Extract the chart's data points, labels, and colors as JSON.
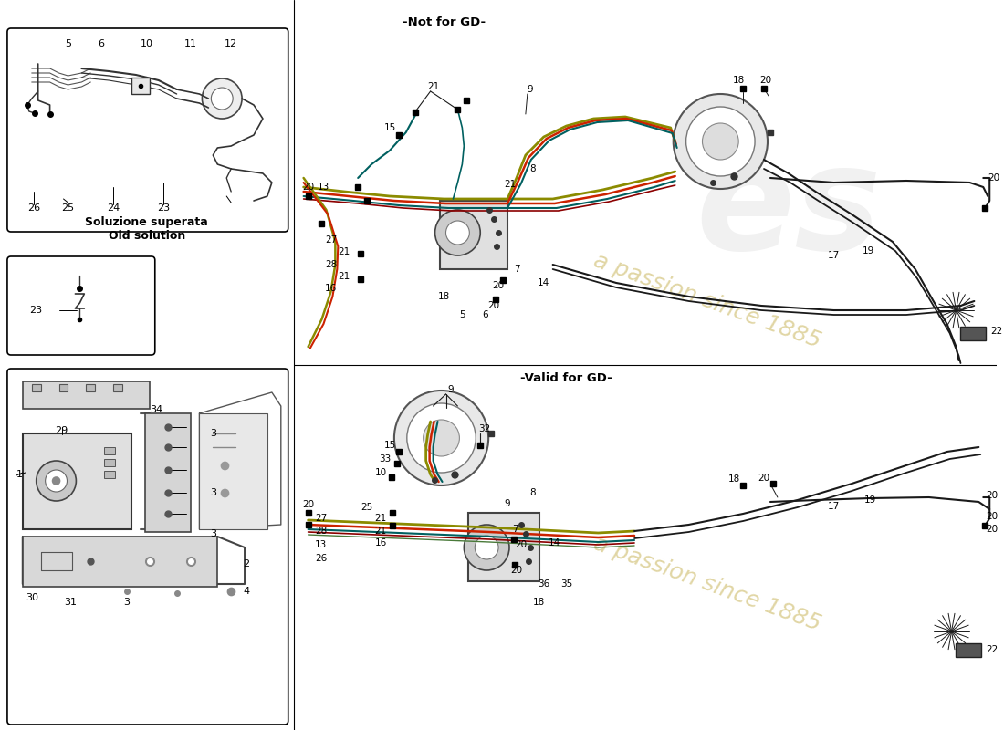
{
  "background_color": "#ffffff",
  "not_for_gd_label": "-Not for GD-",
  "valid_for_gd_label": "-Valid for GD-",
  "old_solution_label_it": "Soluzione superata",
  "old_solution_label_en": "Old solution",
  "watermark_color": "#c8b45a",
  "line_color": "#1a1a1a",
  "olive": "#8b8b00",
  "red_line": "#cc2200",
  "teal_line": "#006060",
  "green_line": "#4a7a3a",
  "purple_line": "#8b4090",
  "maroon_line": "#8b1010"
}
